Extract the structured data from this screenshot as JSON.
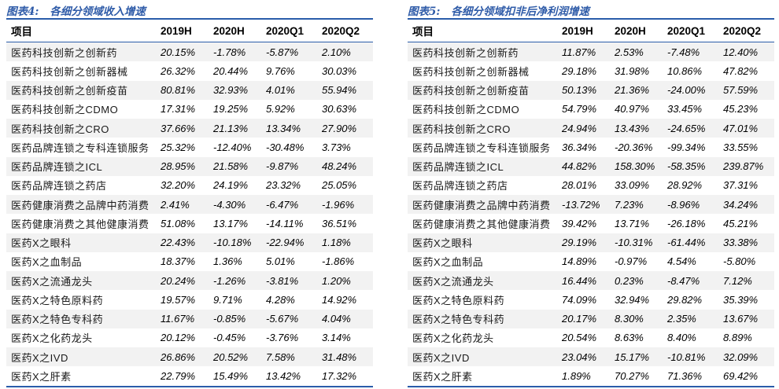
{
  "style": {
    "accent_blue": "#2A5CAA",
    "title_blue": "#2E5BA8",
    "stripe_gray": "#F2F2F2"
  },
  "chart_data": [
    {
      "type": "table",
      "fig_label": "图表4:",
      "title": "各细分领域收入增速",
      "columns": [
        "项目",
        "2019H",
        "2020H",
        "2020Q1",
        "2020Q2"
      ],
      "rows": [
        {
          "label": "医药科技创新之创新药",
          "values": [
            "20.15%",
            "-1.78%",
            "-5.87%",
            "2.10%"
          ]
        },
        {
          "label": "医药科技创新之创新器械",
          "values": [
            "26.32%",
            "20.44%",
            "9.76%",
            "30.03%"
          ]
        },
        {
          "label": "医药科技创新之创新疫苗",
          "values": [
            "80.81%",
            "32.93%",
            "4.01%",
            "55.94%"
          ]
        },
        {
          "label": "医药科技创新之CDMO",
          "values": [
            "17.31%",
            "19.25%",
            "5.92%",
            "30.63%"
          ]
        },
        {
          "label": "医药科技创新之CRO",
          "values": [
            "37.66%",
            "21.13%",
            "13.34%",
            "27.90%"
          ]
        },
        {
          "label": "医药品牌连锁之专科连锁服务",
          "values": [
            "25.32%",
            "-12.40%",
            "-30.48%",
            "3.73%"
          ]
        },
        {
          "label": "医药品牌连锁之ICL",
          "values": [
            "28.95%",
            "21.58%",
            "-9.87%",
            "48.24%"
          ]
        },
        {
          "label": "医药品牌连锁之药店",
          "values": [
            "32.20%",
            "24.19%",
            "23.32%",
            "25.05%"
          ]
        },
        {
          "label": "医药健康消费之品牌中药消费",
          "values": [
            "2.41%",
            "-4.30%",
            "-6.47%",
            "-1.96%"
          ]
        },
        {
          "label": "医药健康消费之其他健康消费",
          "values": [
            "51.08%",
            "13.17%",
            "-14.11%",
            "36.51%"
          ]
        },
        {
          "label": "医药X之眼科",
          "values": [
            "22.43%",
            "-10.18%",
            "-22.94%",
            "1.18%"
          ]
        },
        {
          "label": "医药X之血制品",
          "values": [
            "18.37%",
            "1.36%",
            "5.01%",
            "-1.86%"
          ]
        },
        {
          "label": "医药X之流通龙头",
          "values": [
            "20.24%",
            "-1.26%",
            "-3.81%",
            "1.20%"
          ]
        },
        {
          "label": "医药X之特色原料药",
          "values": [
            "19.57%",
            "9.71%",
            "4.28%",
            "14.92%"
          ]
        },
        {
          "label": "医药X之特色专科药",
          "values": [
            "11.67%",
            "-0.85%",
            "-5.67%",
            "4.04%"
          ]
        },
        {
          "label": "医药X之化药龙头",
          "values": [
            "20.12%",
            "-0.45%",
            "-3.76%",
            "3.14%"
          ]
        },
        {
          "label": "医药X之IVD",
          "values": [
            "26.86%",
            "20.52%",
            "7.58%",
            "31.48%"
          ]
        },
        {
          "label": "医药X之肝素",
          "values": [
            "22.79%",
            "15.49%",
            "13.42%",
            "17.32%"
          ]
        }
      ]
    },
    {
      "type": "table",
      "fig_label": "图表5:",
      "title": "各细分领域扣非后净利润增速",
      "columns": [
        "项目",
        "2019H",
        "2020H",
        "2020Q1",
        "2020Q2"
      ],
      "rows": [
        {
          "label": "医药科技创新之创新药",
          "values": [
            "11.87%",
            "2.53%",
            "-7.48%",
            "12.40%"
          ]
        },
        {
          "label": "医药科技创新之创新器械",
          "values": [
            "29.18%",
            "31.98%",
            "10.86%",
            "47.82%"
          ]
        },
        {
          "label": "医药科技创新之创新疫苗",
          "values": [
            "50.13%",
            "21.36%",
            "-24.00%",
            "57.59%"
          ]
        },
        {
          "label": "医药科技创新之CDMO",
          "values": [
            "54.79%",
            "40.97%",
            "33.45%",
            "45.23%"
          ]
        },
        {
          "label": "医药科技创新之CRO",
          "values": [
            "24.94%",
            "13.43%",
            "-24.65%",
            "47.01%"
          ]
        },
        {
          "label": "医药品牌连锁之专科连锁服务",
          "values": [
            "36.34%",
            "-20.36%",
            "-99.34%",
            "33.55%"
          ]
        },
        {
          "label": "医药品牌连锁之ICL",
          "values": [
            "44.82%",
            "158.30%",
            "-58.35%",
            "239.87%"
          ]
        },
        {
          "label": "医药品牌连锁之药店",
          "values": [
            "28.01%",
            "33.09%",
            "28.92%",
            "37.31%"
          ]
        },
        {
          "label": "医药健康消费之品牌中药消费",
          "values": [
            "-13.72%",
            "7.23%",
            "-8.96%",
            "34.24%"
          ]
        },
        {
          "label": "医药健康消费之其他健康消费",
          "values": [
            "39.42%",
            "13.71%",
            "-26.18%",
            "45.21%"
          ]
        },
        {
          "label": "医药X之眼科",
          "values": [
            "29.19%",
            "-10.31%",
            "-61.44%",
            "33.38%"
          ]
        },
        {
          "label": "医药X之血制品",
          "values": [
            "14.89%",
            "-0.97%",
            "4.54%",
            "-5.80%"
          ]
        },
        {
          "label": "医药X之流通龙头",
          "values": [
            "16.44%",
            "0.23%",
            "-8.47%",
            "7.12%"
          ]
        },
        {
          "label": "医药X之特色原料药",
          "values": [
            "74.09%",
            "32.94%",
            "29.82%",
            "35.39%"
          ]
        },
        {
          "label": "医药X之特色专科药",
          "values": [
            "20.17%",
            "8.30%",
            "2.35%",
            "13.67%"
          ]
        },
        {
          "label": "医药X之化药龙头",
          "values": [
            "20.54%",
            "8.63%",
            "8.40%",
            "8.89%"
          ]
        },
        {
          "label": "医药X之IVD",
          "values": [
            "23.04%",
            "15.17%",
            "-10.81%",
            "32.09%"
          ]
        },
        {
          "label": "医药X之肝素",
          "values": [
            "1.89%",
            "70.27%",
            "71.36%",
            "69.42%"
          ]
        }
      ]
    }
  ]
}
